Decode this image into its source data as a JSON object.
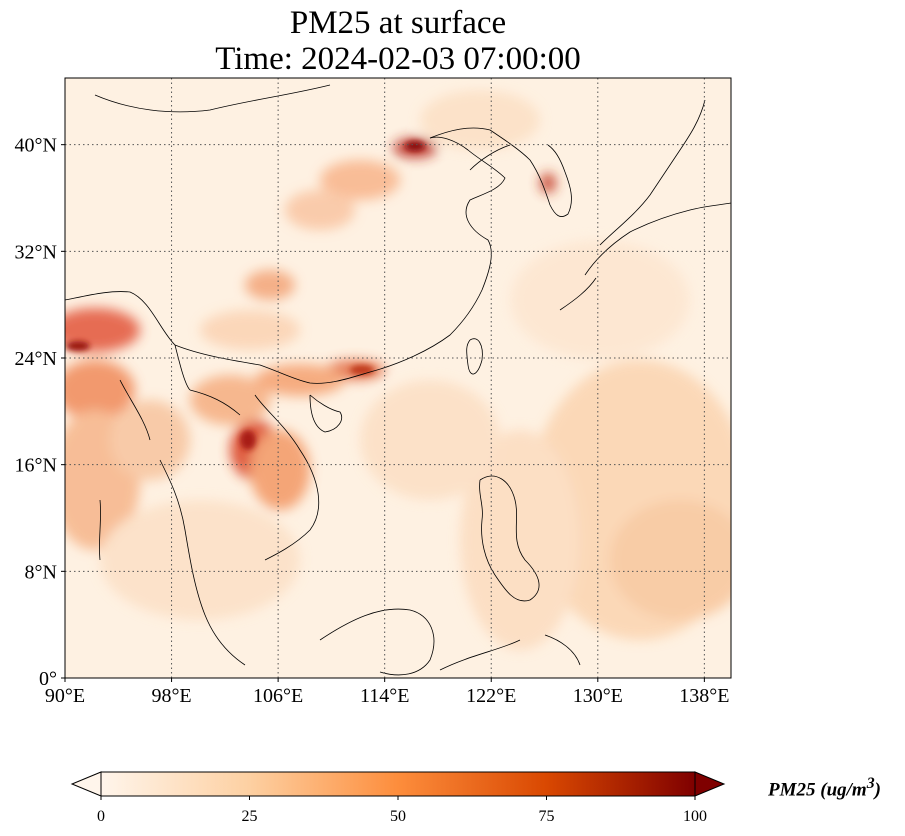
{
  "title": {
    "line1": "PM25 at surface",
    "line2": "Time: 2024-02-03 07:00:00"
  },
  "map": {
    "lon_range": [
      90,
      140
    ],
    "lat_range": [
      0,
      45
    ],
    "lon_ticks": [
      {
        "value": 90,
        "label": "90°E"
      },
      {
        "value": 98,
        "label": "98°E"
      },
      {
        "value": 106,
        "label": "106°E"
      },
      {
        "value": 114,
        "label": "114°E"
      },
      {
        "value": 122,
        "label": "122°E"
      },
      {
        "value": 130,
        "label": "130°E"
      },
      {
        "value": 138,
        "label": "138°E"
      }
    ],
    "lat_ticks": [
      {
        "value": 0,
        "label": "0°"
      },
      {
        "value": 8,
        "label": "8°N"
      },
      {
        "value": 16,
        "label": "16°N"
      },
      {
        "value": 24,
        "label": "24°N"
      },
      {
        "value": 32,
        "label": "32°N"
      },
      {
        "value": 40,
        "label": "40°N"
      }
    ],
    "gridlines": "dotted",
    "colormap": [
      "#fff5eb",
      "#fdd0a2",
      "#fd8d3c",
      "#d94801",
      "#7f0000"
    ],
    "background_color": "#fdebd3",
    "coastline_color": "#000000"
  },
  "colorbar": {
    "min": 0,
    "max": 100,
    "extend": "both",
    "ticks": [
      {
        "value": 0,
        "label": "0"
      },
      {
        "value": 25,
        "label": "25"
      },
      {
        "value": 50,
        "label": "50"
      },
      {
        "value": 75,
        "label": "75"
      },
      {
        "value": 100,
        "label": "100"
      }
    ],
    "label": "PM25 (ug/m",
    "label_superscript": "3",
    "label_close": ")"
  }
}
